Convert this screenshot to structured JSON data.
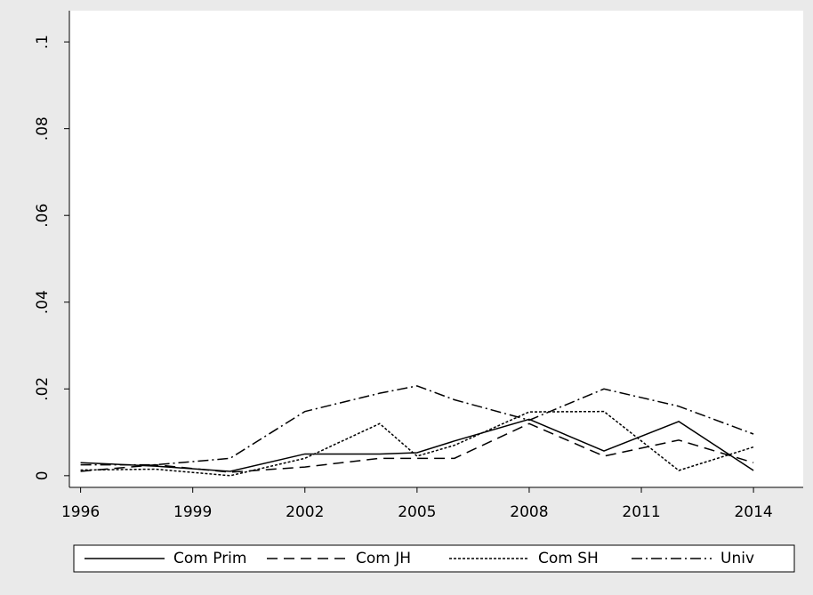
{
  "chart_data": {
    "type": "line",
    "x": [
      1996,
      1998,
      2000,
      2002,
      2004,
      2005,
      2006,
      2008,
      2010,
      2012,
      2014
    ],
    "series": [
      {
        "name": "Com Prim",
        "color": "#000000",
        "dash": "none",
        "values": [
          0.003,
          0.0022,
          0.001,
          0.005,
          0.005,
          0.0053,
          0.008,
          0.013,
          0.0057,
          0.0125,
          0.0012
        ]
      },
      {
        "name": "Com JH",
        "color": "#000000",
        "dash": "12,7",
        "values": [
          0.001,
          0.0025,
          0.0008,
          0.002,
          0.004,
          0.004,
          0.004,
          0.012,
          0.0045,
          0.0082,
          0.003
        ]
      },
      {
        "name": "Com SH",
        "color": "#000000",
        "dash": "3,2",
        "values": [
          0.0013,
          0.0015,
          0.0,
          0.004,
          0.012,
          0.0045,
          0.007,
          0.0147,
          0.0148,
          0.0012,
          0.0066
        ]
      },
      {
        "name": "Univ",
        "color": "#000000",
        "dash": "12,4,2,4",
        "values": [
          0.0025,
          0.0025,
          0.004,
          0.0148,
          0.019,
          0.0207,
          0.0175,
          0.0128,
          0.02,
          0.016,
          0.0096
        ]
      }
    ],
    "xlim": [
      1995.7,
      2015.33
    ],
    "xticks": [
      1996,
      1999,
      2002,
      2005,
      2008,
      2011,
      2014
    ],
    "ylim": [
      -0.0027,
      0.1072
    ],
    "yticks": [
      {
        "value": 0,
        "label": "0"
      },
      {
        "value": 0.02,
        "label": ".02"
      },
      {
        "value": 0.04,
        "label": ".04"
      },
      {
        "value": 0.06,
        "label": ".06"
      },
      {
        "value": 0.08,
        "label": ".08"
      },
      {
        "value": 0.1,
        "label": ".1"
      }
    ]
  }
}
